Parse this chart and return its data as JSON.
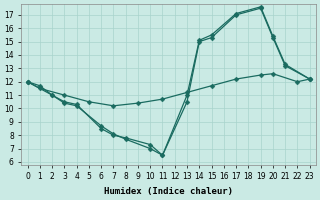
{
  "xlabel": "Humidex (Indice chaleur)",
  "bg_color": "#caeae4",
  "line_color": "#1a6b60",
  "grid_color": "#a8d4cc",
  "xlim": [
    -0.5,
    23.5
  ],
  "ylim": [
    5.8,
    17.8
  ],
  "xticks": [
    0,
    1,
    2,
    3,
    4,
    5,
    6,
    7,
    8,
    9,
    10,
    11,
    12,
    13,
    14,
    15,
    16,
    17,
    18,
    19,
    20,
    21,
    22,
    23
  ],
  "yticks": [
    6,
    7,
    8,
    9,
    10,
    11,
    12,
    13,
    14,
    15,
    16,
    17
  ],
  "series1_x": [
    0,
    1,
    2,
    3,
    4,
    6,
    7,
    8,
    10,
    11,
    13,
    14,
    15,
    17,
    19,
    20,
    21,
    23
  ],
  "series1_y": [
    12,
    11.7,
    11.0,
    10.5,
    10.3,
    8.5,
    8.0,
    7.8,
    7.3,
    6.5,
    10.5,
    15.0,
    15.3,
    17.0,
    17.5,
    15.3,
    13.2,
    12.2
  ],
  "series2_x": [
    0,
    2,
    3,
    4,
    6,
    7,
    8,
    10,
    11,
    13,
    14,
    15,
    17,
    19,
    20,
    21,
    23
  ],
  "series2_y": [
    12,
    11.0,
    10.4,
    10.2,
    8.7,
    8.1,
    7.7,
    7.0,
    6.5,
    11.0,
    15.1,
    15.5,
    17.1,
    17.6,
    15.4,
    13.3,
    12.2
  ],
  "series3_x": [
    0,
    1,
    3,
    5,
    7,
    9,
    11,
    13,
    15,
    17,
    19,
    20,
    22,
    23
  ],
  "series3_y": [
    12,
    11.5,
    11.0,
    10.5,
    10.2,
    10.4,
    10.7,
    11.2,
    11.7,
    12.2,
    12.5,
    12.6,
    12.0,
    12.2
  ],
  "tick_fontsize": 5.5,
  "xlabel_fontsize": 6.5
}
